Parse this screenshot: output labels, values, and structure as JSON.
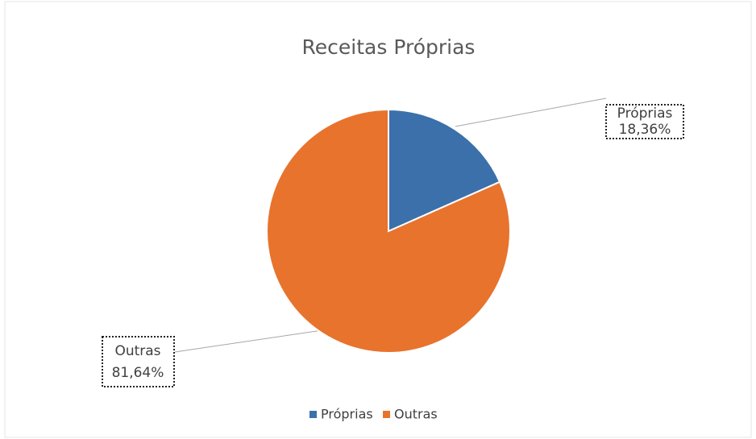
{
  "chart_data": {
    "type": "pie",
    "title": "Receitas Próprias",
    "categories": [
      "Próprias",
      "Outras"
    ],
    "values": [
      18.36,
      81.64
    ],
    "value_labels": [
      "18,36%",
      "81,64%"
    ],
    "colors": [
      "#3b70aa",
      "#e8732d"
    ],
    "legend": "bottom"
  }
}
